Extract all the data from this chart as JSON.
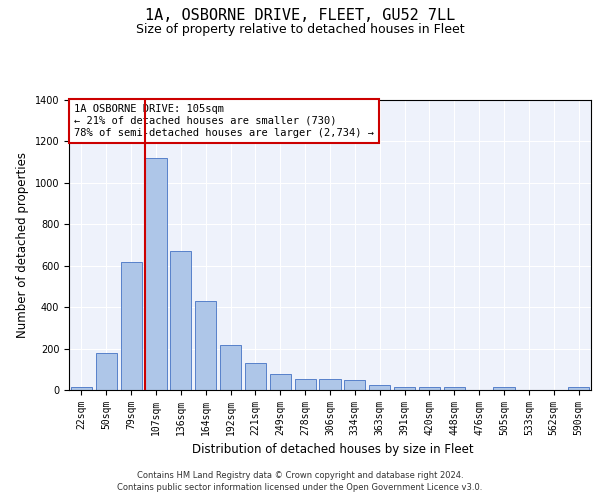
{
  "title": "1A, OSBORNE DRIVE, FLEET, GU52 7LL",
  "subtitle": "Size of property relative to detached houses in Fleet",
  "xlabel": "Distribution of detached houses by size in Fleet",
  "ylabel": "Number of detached properties",
  "footnote1": "Contains HM Land Registry data © Crown copyright and database right 2024.",
  "footnote2": "Contains public sector information licensed under the Open Government Licence v3.0.",
  "annotation_line1": "1A OSBORNE DRIVE: 105sqm",
  "annotation_line2": "← 21% of detached houses are smaller (730)",
  "annotation_line3": "78% of semi-detached houses are larger (2,734) →",
  "bar_color": "#aec6e8",
  "bar_edge_color": "#4472c4",
  "marker_color": "#cc0000",
  "background_color": "#eef2fb",
  "annotation_box_color": "#ffffff",
  "annotation_box_edge": "#cc0000",
  "categories": [
    "22sqm",
    "50sqm",
    "79sqm",
    "107sqm",
    "136sqm",
    "164sqm",
    "192sqm",
    "221sqm",
    "249sqm",
    "278sqm",
    "306sqm",
    "334sqm",
    "363sqm",
    "391sqm",
    "420sqm",
    "448sqm",
    "476sqm",
    "505sqm",
    "533sqm",
    "562sqm",
    "590sqm"
  ],
  "values": [
    15,
    180,
    620,
    1120,
    670,
    430,
    215,
    130,
    75,
    55,
    55,
    50,
    25,
    15,
    15,
    15,
    0,
    15,
    0,
    0,
    15
  ],
  "ylim": [
    0,
    1400
  ],
  "yticks": [
    0,
    200,
    400,
    600,
    800,
    1000,
    1200,
    1400
  ],
  "marker_bin_index": 3,
  "title_fontsize": 11,
  "subtitle_fontsize": 9,
  "axis_label_fontsize": 8.5,
  "tick_fontsize": 7,
  "annotation_fontsize": 7.5,
  "footnote_fontsize": 6
}
